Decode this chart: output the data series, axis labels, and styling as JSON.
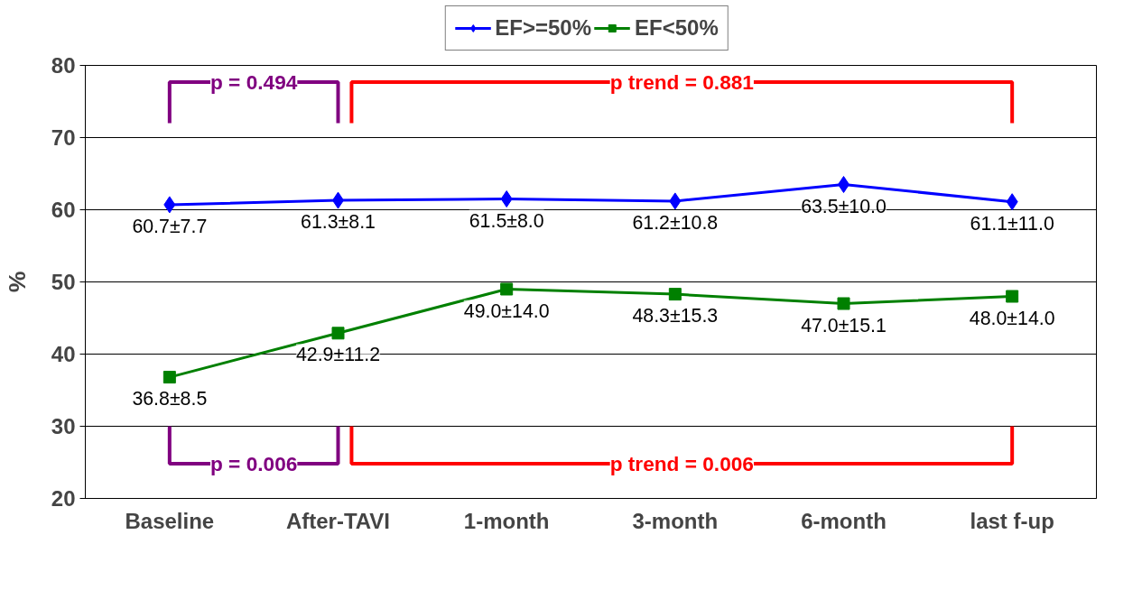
{
  "chart_data": {
    "type": "line",
    "ylabel": "%",
    "categories": [
      "Baseline",
      "After-TAVI",
      "1-month",
      "3-month",
      "6-month",
      "last f-up"
    ],
    "series": [
      {
        "name": "EF>=50%",
        "color": "#0000ff",
        "marker": "diamond",
        "values": [
          60.7,
          61.3,
          61.5,
          61.2,
          63.5,
          61.1
        ],
        "value_labels": [
          "60.7±7.7",
          "61.3±8.1",
          "61.5±8.0",
          "61.2±10.8",
          "63.5±10.0",
          "61.1±11.0"
        ]
      },
      {
        "name": "EF<50%",
        "color": "#008000",
        "marker": "square",
        "values": [
          36.8,
          42.9,
          49.0,
          48.3,
          47.0,
          48.0
        ],
        "value_labels": [
          "36.8±8.5",
          "42.9±11.2",
          "49.0±14.0",
          "48.3±15.3",
          "47.0±15.1",
          "48.0±14.0"
        ]
      }
    ],
    "ylim": [
      20,
      80
    ],
    "yticks": [
      20,
      30,
      40,
      50,
      60,
      70,
      80
    ],
    "grid": "y",
    "legend": "top",
    "line_style": "solid",
    "annotations": [
      "p = 0.494",
      "p trend = 0.881",
      "p = 0.006",
      "p trend = 0.006"
    ]
  }
}
